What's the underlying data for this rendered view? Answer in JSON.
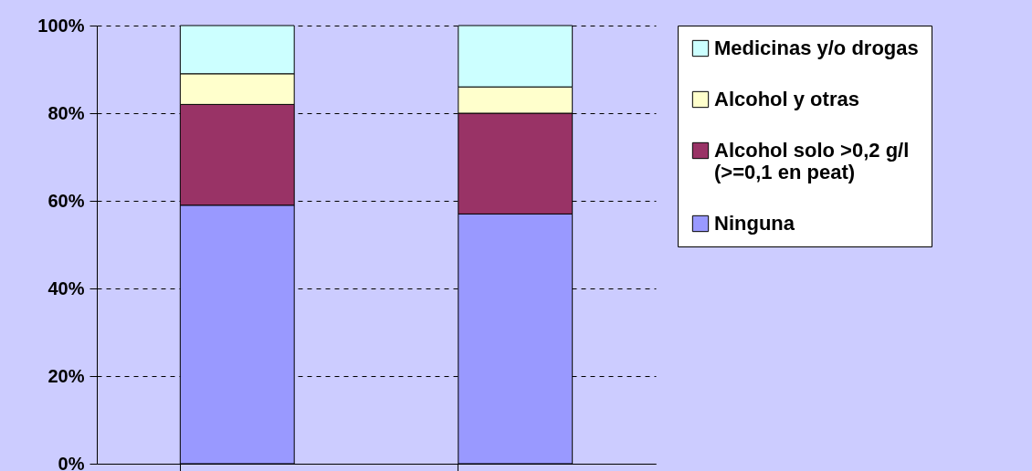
{
  "chart_data": {
    "type": "bar",
    "stacked": true,
    "categories": [
      null,
      null
    ],
    "series": [
      {
        "name": "Ninguna",
        "color": "#9999ff",
        "values": [
          59,
          57
        ]
      },
      {
        "name": "Alcohol solo >0,2 g/l (>=0,1 en peat)",
        "color": "#993366",
        "values": [
          23,
          23
        ]
      },
      {
        "name": "Alcohol y otras",
        "color": "#ffffcc",
        "values": [
          7,
          6
        ]
      },
      {
        "name": "Medicinas y/o drogas",
        "color": "#ccffff",
        "values": [
          11,
          14
        ]
      }
    ],
    "ylim": [
      0,
      100
    ],
    "yticks": [
      {
        "value": 0,
        "label": "0%"
      },
      {
        "value": 20,
        "label": "20%"
      },
      {
        "value": 40,
        "label": "40%"
      },
      {
        "value": 60,
        "label": "60%"
      },
      {
        "value": 80,
        "label": "80%"
      },
      {
        "value": 100,
        "label": "100%"
      }
    ],
    "grid": "y",
    "legend": "right"
  }
}
